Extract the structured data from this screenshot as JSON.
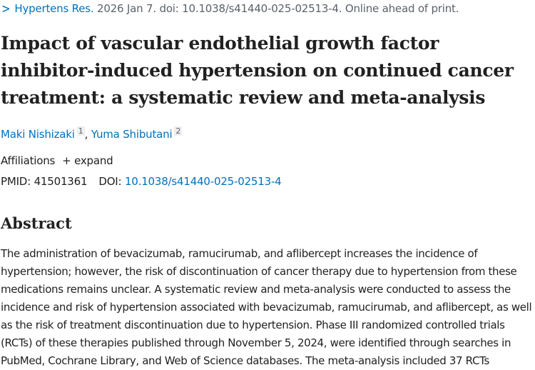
{
  "citation": {
    "journal": "Hypertens Res.",
    "details": " 2026 Jan 7. doi: 10.1038/s41440-025-02513-4. Online ahead of print."
  },
  "title": "Impact of vascular endothelial growth factor inhibitor-induced hypertension on continued cancer treatment: a systematic review and meta-analysis",
  "authors": [
    {
      "name": "Maki Nishizaki",
      "sup": "1"
    },
    {
      "name": "Yuma Shibutani",
      "sup": "2"
    }
  ],
  "affiliations": {
    "label": "Affiliations",
    "expand": "+ expand"
  },
  "ids": {
    "pmid_label": "PMID: 41501361",
    "doi_label": "DOI: ",
    "doi": "10.1038/s41440-025-02513-4"
  },
  "abstract": {
    "heading": "Abstract",
    "text": "The administration of bevacizumab, ramucirumab, and aflibercept increases the incidence of hypertension; however, the risk of discontinuation of cancer therapy due to hypertension from these medications remains unclear. A systematic review and meta-analysis were conducted to assess the incidence and risk of hypertension associated with bevacizumab, ramucirumab, and aflibercept, as well as the risk of treatment discontinuation due to hypertension. Phase III randomized controlled trials (RCTs) of these therapies published through November 5, 2024, were identified through searches in PubMed, Cochrane Library, and Web of Science databases. The meta-analysis included 37 RCTs"
  }
}
